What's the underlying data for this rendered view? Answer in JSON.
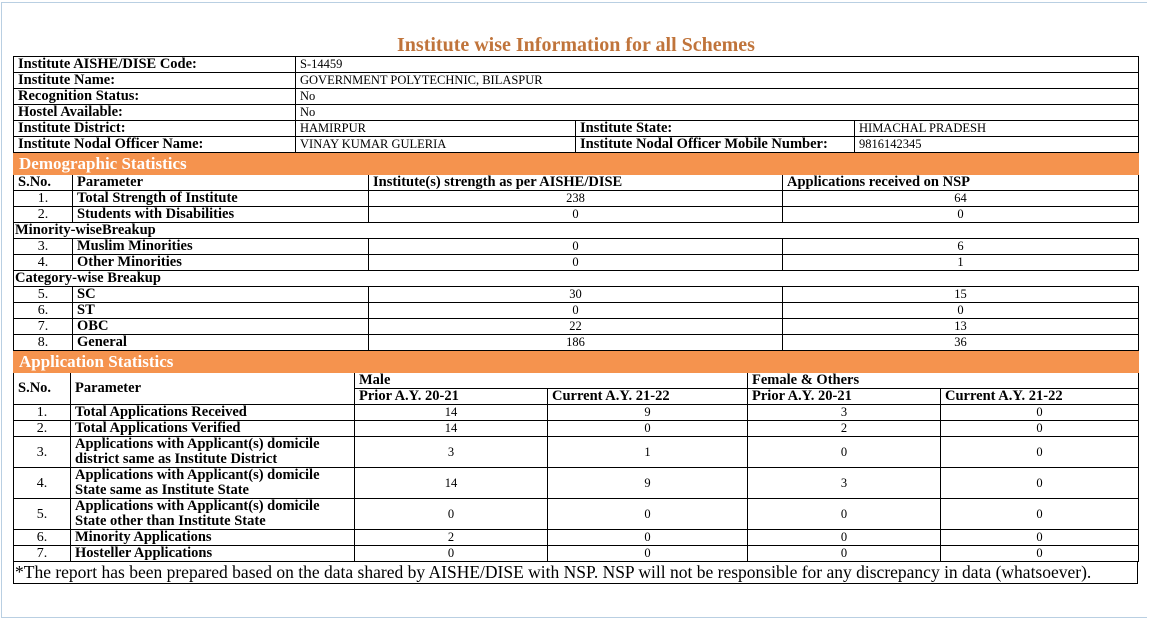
{
  "title": "Institute wise Information for all Schemes",
  "info": {
    "aishe_label": "Institute AISHE/DISE Code:",
    "aishe_value": "S-14459",
    "name_label": "Institute Name:",
    "name_value": "GOVERNMENT POLYTECHNIC, BILASPUR",
    "recognition_label": "Recognition Status:",
    "recognition_value": "No",
    "hostel_label": "Hostel Available:",
    "hostel_value": "No",
    "district_label": "Institute District:",
    "district_value": "HAMIRPUR",
    "state_label": "Institute State:",
    "state_value": "HIMACHAL PRADESH",
    "officer_label": "Institute Nodal Officer Name:",
    "officer_value": "VINAY KUMAR GULERIA",
    "mobile_label": "Institute Nodal Officer Mobile Number:",
    "mobile_value": "9816142345"
  },
  "demographic": {
    "section_title": "Demographic Statistics",
    "col_sno": "S.No.",
    "col_param": "Parameter",
    "col_strength": "Institute(s) strength as per AISHE/DISE",
    "col_nsp": "Applications received on NSP",
    "rows_a": [
      {
        "sno": "1.",
        "param": "Total Strength of Institute",
        "strength": "238",
        "nsp": "64"
      },
      {
        "sno": "2.",
        "param": "Students with Disabilities",
        "strength": "0",
        "nsp": "0"
      }
    ],
    "minority_heading": "Minority-wiseBreakup",
    "rows_b": [
      {
        "sno": "3.",
        "param": "Muslim Minorities",
        "strength": "0",
        "nsp": "6"
      },
      {
        "sno": "4.",
        "param": "Other Minorities",
        "strength": "0",
        "nsp": "1"
      }
    ],
    "category_heading": "Category-wise Breakup",
    "rows_c": [
      {
        "sno": "5.",
        "param": "SC",
        "strength": "30",
        "nsp": "15"
      },
      {
        "sno": "6.",
        "param": "ST",
        "strength": "0",
        "nsp": "0"
      },
      {
        "sno": "7.",
        "param": "OBC",
        "strength": "22",
        "nsp": "13"
      },
      {
        "sno": "8.",
        "param": "General",
        "strength": "186",
        "nsp": "36"
      }
    ]
  },
  "application": {
    "section_title": "Application Statistics",
    "col_sno": "S.No.",
    "col_param": "Parameter",
    "male": "Male",
    "female": "Female & Others",
    "prior": "Prior A.Y. 20-21",
    "current": "Current A.Y. 21-22",
    "rows": [
      {
        "sno": "1.",
        "param": "Total Applications Received",
        "m_prior": "14",
        "m_curr": "9",
        "f_prior": "3",
        "f_curr": "0"
      },
      {
        "sno": "2.",
        "param": "Total Applications Verified",
        "m_prior": "14",
        "m_curr": "0",
        "f_prior": "2",
        "f_curr": "0"
      },
      {
        "sno": "3.",
        "param": "Applications with Applicant(s) domicile district same as Institute District",
        "m_prior": "3",
        "m_curr": "1",
        "f_prior": "0",
        "f_curr": "0"
      },
      {
        "sno": "4.",
        "param": "Applications with Applicant(s) domicile State same as Institute State",
        "m_prior": "14",
        "m_curr": "9",
        "f_prior": "3",
        "f_curr": "0"
      },
      {
        "sno": "5.",
        "param": "Applications with Applicant(s) domicile State other than Institute State",
        "m_prior": "0",
        "m_curr": "0",
        "f_prior": "0",
        "f_curr": "0"
      },
      {
        "sno": "6.",
        "param": "Minority Applications",
        "m_prior": "2",
        "m_curr": "0",
        "f_prior": "0",
        "f_curr": "0"
      },
      {
        "sno": "7.",
        "param": "Hosteller Applications",
        "m_prior": "0",
        "m_curr": "0",
        "f_prior": "0",
        "f_curr": "0"
      }
    ]
  },
  "footnote": "*The report has been prepared based on the data shared by AISHE/DISE with NSP. NSP will not be responsible for any discrepancy in data (whatsoever)."
}
